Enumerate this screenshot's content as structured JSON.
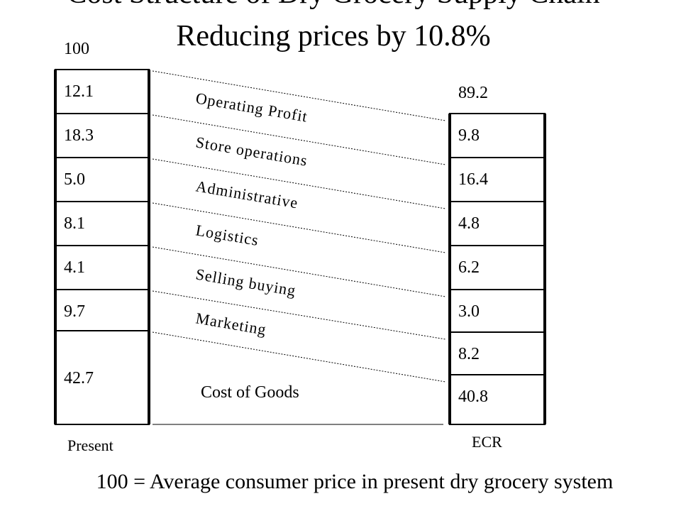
{
  "title": "Cost Structure of Dry Grocery Supply Chain",
  "subtitle": "Reducing prices by 10.8%",
  "columns": [
    {
      "name": "Present",
      "total": "100",
      "segments": [
        "12.1",
        "18.3",
        "5.0",
        "8.1",
        "4.1",
        "9.7",
        "42.7"
      ]
    },
    {
      "name": "ECR",
      "total": "89.2",
      "segments": [
        "9.8",
        "16.4",
        "4.8",
        "6.2",
        "3.0",
        "8.2",
        "40.8"
      ]
    }
  ],
  "categories": [
    "Operating Profit",
    "Store operations",
    "Administrative",
    "Logistics",
    "Selling buying",
    "Marketing",
    "Cost of Goods"
  ],
  "footnote": "100 = Average consumer price in present dry grocery system"
}
